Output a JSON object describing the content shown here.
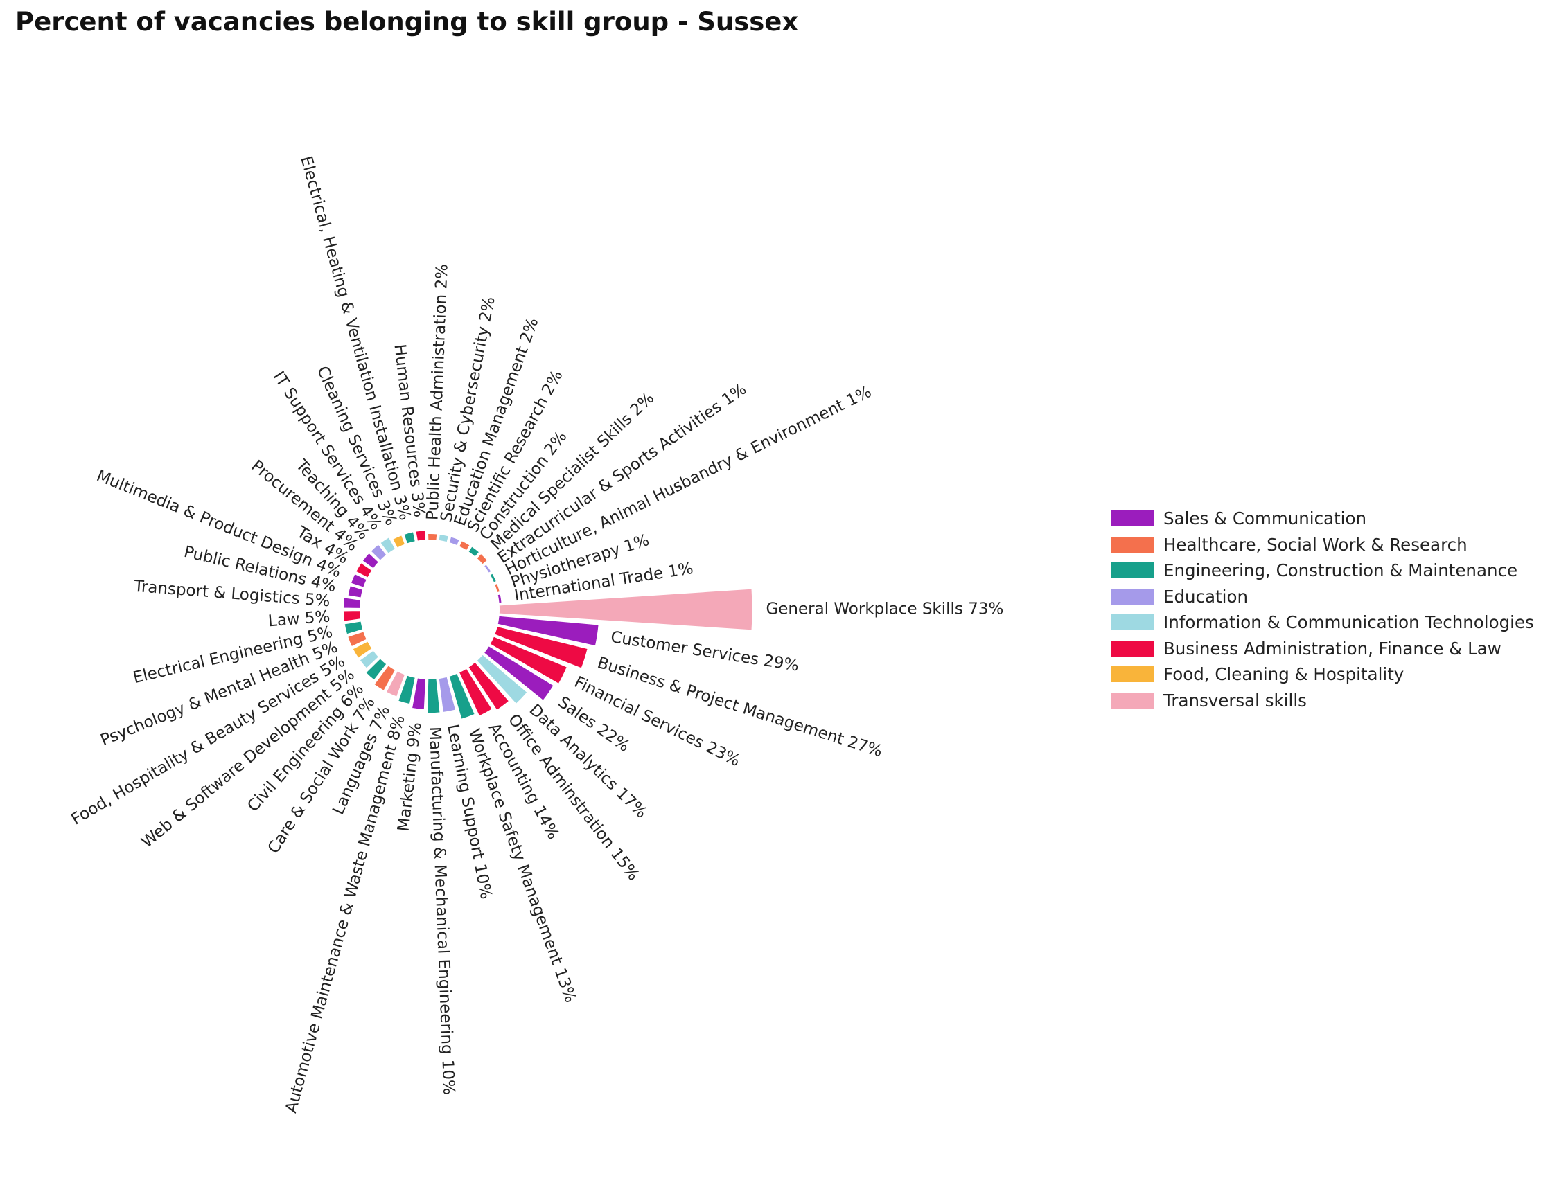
{
  "title": "Percent of vacancies belonging to skill group - Sussex",
  "chart_data": {
    "type": "bar",
    "layout": "circular",
    "title": "Percent of vacancies belonging to skill group - Sussex",
    "unit": "%",
    "categories": [
      "General Workplace Skills",
      "Customer Services",
      "Business & Project Management",
      "Financial Services",
      "Sales",
      "Data Analytics",
      "Office Adminstration",
      "Accounting",
      "Workplace Safety Management",
      "Learning Support",
      "Manufacturing & Mechanical Engineering",
      "Marketing",
      "Automotive Maintenance & Waste Management",
      "Languages",
      "Care & Social Work",
      "Civil Engineering",
      "Web & Software Development",
      "Food, Hospitality & Beauty Services",
      "Psychology & Mental Health",
      "Electrical Engineering",
      "Law",
      "Transport & Logistics",
      "Public Relations",
      "Multimedia & Product Design",
      "Tax",
      "Procurement",
      "Teaching",
      "IT Support Services",
      "Cleaning Services",
      "Electrical, Heating & Ventilation Installation",
      "Human Resources",
      "Public Health Administration",
      "Security & Cybersecurity",
      "Education Management",
      "Scientific Research",
      "Construction",
      "Medical Specialist Skills",
      "Extracurricular & Sports Activities",
      "Horticulture, Animal Husbandry & Environment",
      "Physiotherapy",
      "International Trade"
    ],
    "values": [
      73,
      29,
      27,
      23,
      22,
      17,
      15,
      14,
      13,
      10,
      10,
      9,
      8,
      7,
      7,
      6,
      5,
      5,
      5,
      5,
      5,
      5,
      4,
      4,
      4,
      4,
      4,
      4,
      3,
      3,
      3,
      2,
      2,
      2,
      2,
      2,
      2,
      1,
      1,
      1,
      1
    ],
    "labels": [
      "General Workplace Skills 73%",
      "Customer Services 29%",
      "Business & Project Management 27%",
      "Financial Services 23%",
      "Sales 22%",
      "Data Analytics 17%",
      "Office Adminstration 15%",
      "Accounting 14%",
      "Workplace Safety Management 13%",
      "Learning Support 10%",
      "Manufacturing & Mechanical Engineering 10%",
      "Marketing 9%",
      "Automotive Maintenance & Waste Management 8%",
      "Languages 7%",
      "Care & Social Work 7%",
      "Civil Engineering 6%",
      "Web & Software Development 5%",
      "Food, Hospitality & Beauty Services 5%",
      "Psychology & Mental Health 5%",
      "Electrical Engineering 5%",
      "Law 5%",
      "Transport & Logistics 5%",
      "Public Relations 4%",
      "Multimedia & Product Design 4%",
      "Tax 4%",
      "Procurement 4%",
      "Teaching 4%",
      "IT Support Services 4%",
      "Cleaning Services 3%",
      "Electrical, Heating & Ventilation Installation 3%",
      "Human Resources 3%",
      "Public Health Administration 2%",
      "Security & Cybersecurity 2%",
      "Education Management 2%",
      "Scientific Research 2%",
      "Construction 2%",
      "Medical Specialist Skills 2%",
      "Extracurricular & Sports Activities 1%",
      "Horticulture, Animal Husbandry & Environment 1%",
      "Physiotherapy 1%",
      "International Trade 1%"
    ],
    "groups": [
      "Transversal skills",
      "Sales & Communication",
      "Business Administration, Finance & Law",
      "Business Administration, Finance & Law",
      "Sales & Communication",
      "Information & Communication Technologies",
      "Business Administration, Finance & Law",
      "Business Administration, Finance & Law",
      "Engineering, Construction & Maintenance",
      "Education",
      "Engineering, Construction & Maintenance",
      "Sales & Communication",
      "Engineering, Construction & Maintenance",
      "Transversal skills",
      "Healthcare, Social Work & Research",
      "Engineering, Construction & Maintenance",
      "Information & Communication Technologies",
      "Food, Cleaning & Hospitality",
      "Healthcare, Social Work & Research",
      "Engineering, Construction & Maintenance",
      "Business Administration, Finance & Law",
      "Sales & Communication",
      "Sales & Communication",
      "Sales & Communication",
      "Business Administration, Finance & Law",
      "Sales & Communication",
      "Education",
      "Information & Communication Technologies",
      "Food, Cleaning & Hospitality",
      "Engineering, Construction & Maintenance",
      "Business Administration, Finance & Law",
      "Healthcare, Social Work & Research",
      "Information & Communication Technologies",
      "Education",
      "Healthcare, Social Work & Research",
      "Engineering, Construction & Maintenance",
      "Healthcare, Social Work & Research",
      "Education",
      "Engineering, Construction & Maintenance",
      "Healthcare, Social Work & Research",
      "Sales & Communication"
    ],
    "legend": [
      {
        "name": "Sales & Communication",
        "color": "#9B1DBD"
      },
      {
        "name": "Healthcare, Social Work & Research",
        "color": "#F4704D"
      },
      {
        "name": "Engineering, Construction & Maintenance",
        "color": "#17A08B"
      },
      {
        "name": "Education",
        "color": "#A59AEA"
      },
      {
        "name": "Information & Communication Technologies",
        "color": "#9ED9E2"
      },
      {
        "name": "Business Administration, Finance & Law",
        "color": "#EE0A44"
      },
      {
        "name": "Food, Cleaning & Hospitality",
        "color": "#F9B43A"
      },
      {
        "name": "Transversal skills",
        "color": "#F4A8B8"
      }
    ],
    "legend_position": "right",
    "grid": false
  }
}
